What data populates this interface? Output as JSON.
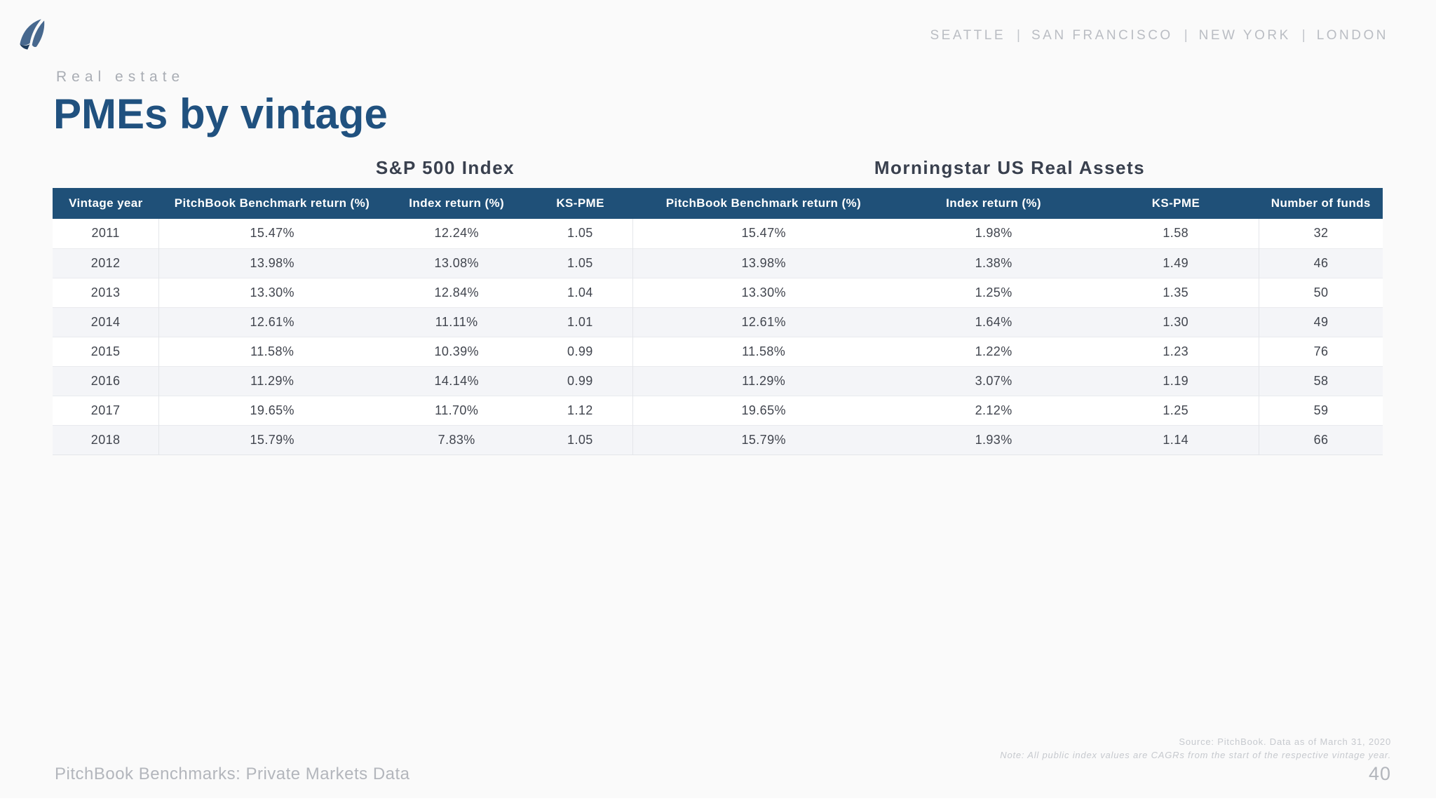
{
  "header": {
    "logo_name": "pitchbook-sails-logo",
    "cities": [
      "SEATTLE",
      "SAN FRANCISCO",
      "NEW YORK",
      "LONDON"
    ],
    "cities_separator": "|"
  },
  "page": {
    "eyebrow": "Real estate",
    "title": "PMEs by vintage"
  },
  "table": {
    "group_titles": {
      "left": "S&P 500 Index",
      "right": "Morningstar US Real Assets"
    },
    "columns": [
      "Vintage year",
      "PitchBook Benchmark return (%)",
      "Index return (%)",
      "KS-PME",
      "PitchBook Benchmark return (%)",
      "Index return (%)",
      "KS-PME",
      "Number of funds"
    ],
    "column_widths_pct": [
      8.0,
      17.0,
      10.75,
      7.85,
      19.7,
      14.9,
      12.5,
      9.3
    ],
    "rows": [
      [
        "2011",
        "15.47%",
        "12.24%",
        "1.05",
        "15.47%",
        "1.98%",
        "1.58",
        "32"
      ],
      [
        "2012",
        "13.98%",
        "13.08%",
        "1.05",
        "13.98%",
        "1.38%",
        "1.49",
        "46"
      ],
      [
        "2013",
        "13.30%",
        "12.84%",
        "1.04",
        "13.30%",
        "1.25%",
        "1.35",
        "50"
      ],
      [
        "2014",
        "12.61%",
        "11.11%",
        "1.01",
        "12.61%",
        "1.64%",
        "1.30",
        "49"
      ],
      [
        "2015",
        "11.58%",
        "10.39%",
        "0.99",
        "11.58%",
        "1.22%",
        "1.23",
        "76"
      ],
      [
        "2016",
        "11.29%",
        "14.14%",
        "0.99",
        "11.29%",
        "3.07%",
        "1.19",
        "58"
      ],
      [
        "2017",
        "19.65%",
        "11.70%",
        "1.12",
        "19.65%",
        "2.12%",
        "1.25",
        "59"
      ],
      [
        "2018",
        "15.79%",
        "7.83%",
        "1.05",
        "15.79%",
        "1.93%",
        "1.14",
        "66"
      ]
    ]
  },
  "footnotes": {
    "source": "Source: PitchBook. Data as of March 31, 2020",
    "note": "Note: All public index values are CAGRs from the start of the respective vintage year."
  },
  "footer": {
    "left": "PitchBook Benchmarks: Private Markets Data",
    "page_number": "40"
  },
  "colors": {
    "header_band": "#1f5078",
    "title_blue": "#20517f",
    "row_stripe": "#f4f5f8",
    "logo_blue": "#47688e",
    "logo_dark": "#1e3c5c",
    "muted_gray": "#a9adb4",
    "footer_gray": "#b3b6bc"
  }
}
